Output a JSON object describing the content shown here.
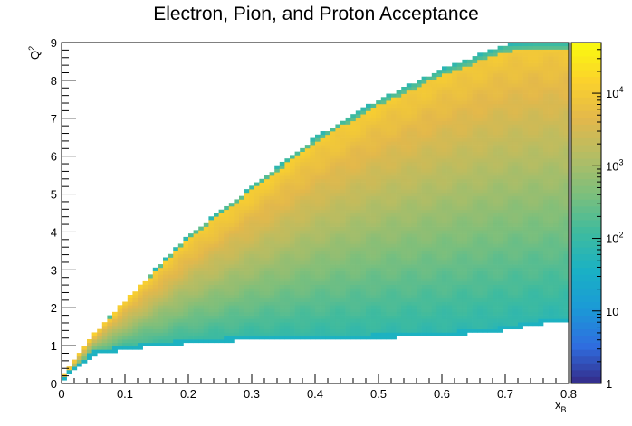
{
  "chart_data": {
    "type": "heatmap",
    "title": "Electron, Pion, and Proton Acceptance",
    "xlabel": "x",
    "xlabel_sub": "B",
    "ylabel": "Q",
    "ylabel_sup": "2",
    "xlim": [
      0,
      0.8
    ],
    "ylim": [
      0,
      9
    ],
    "x_ticks": [
      "0",
      "0.1",
      "0.2",
      "0.3",
      "0.4",
      "0.5",
      "0.6",
      "0.7",
      "0.8"
    ],
    "y_ticks": [
      "0",
      "1",
      "2",
      "3",
      "4",
      "5",
      "6",
      "7",
      "8",
      "9"
    ],
    "z_scale": "log",
    "zlim": [
      1,
      50000
    ],
    "z_tick_values": [
      1,
      10,
      100,
      1000,
      10000
    ],
    "z_ticks": [
      {
        "base": "1",
        "exp": ""
      },
      {
        "base": "10",
        "exp": ""
      },
      {
        "base": "10",
        "exp": "2"
      },
      {
        "base": "10",
        "exp": "3"
      },
      {
        "base": "10",
        "exp": "4"
      }
    ],
    "binning": {
      "nx": 100,
      "ny": 100
    },
    "acceptance_upper_edge": {
      "x": [
        0.0,
        0.05,
        0.1,
        0.2,
        0.3,
        0.4,
        0.5,
        0.6,
        0.7,
        0.75
      ],
      "q2": [
        0.15,
        1.3,
        2.2,
        3.9,
        5.2,
        6.5,
        7.5,
        8.3,
        8.95,
        9.0
      ]
    },
    "acceptance_lower_edge": {
      "x": [
        0.0,
        0.02,
        0.05,
        0.1,
        0.2,
        0.3,
        0.5,
        0.6,
        0.7,
        0.75,
        0.8
      ],
      "q2": [
        0.05,
        0.35,
        0.75,
        0.9,
        1.05,
        1.15,
        1.2,
        1.25,
        1.4,
        1.55,
        1.65
      ]
    },
    "peak_ridge_counts": 20000,
    "interior_counts_range": [
      100,
      3000
    ],
    "colors": {
      "palette": [
        "#352a87",
        "#2f6ee0",
        "#1b9ad6",
        "#1ab1c4",
        "#3fbb9e",
        "#7cbf7c",
        "#b4bd64",
        "#e3b84b",
        "#fbd22c",
        "#f9fb0e"
      ],
      "frame": "#000000"
    }
  }
}
